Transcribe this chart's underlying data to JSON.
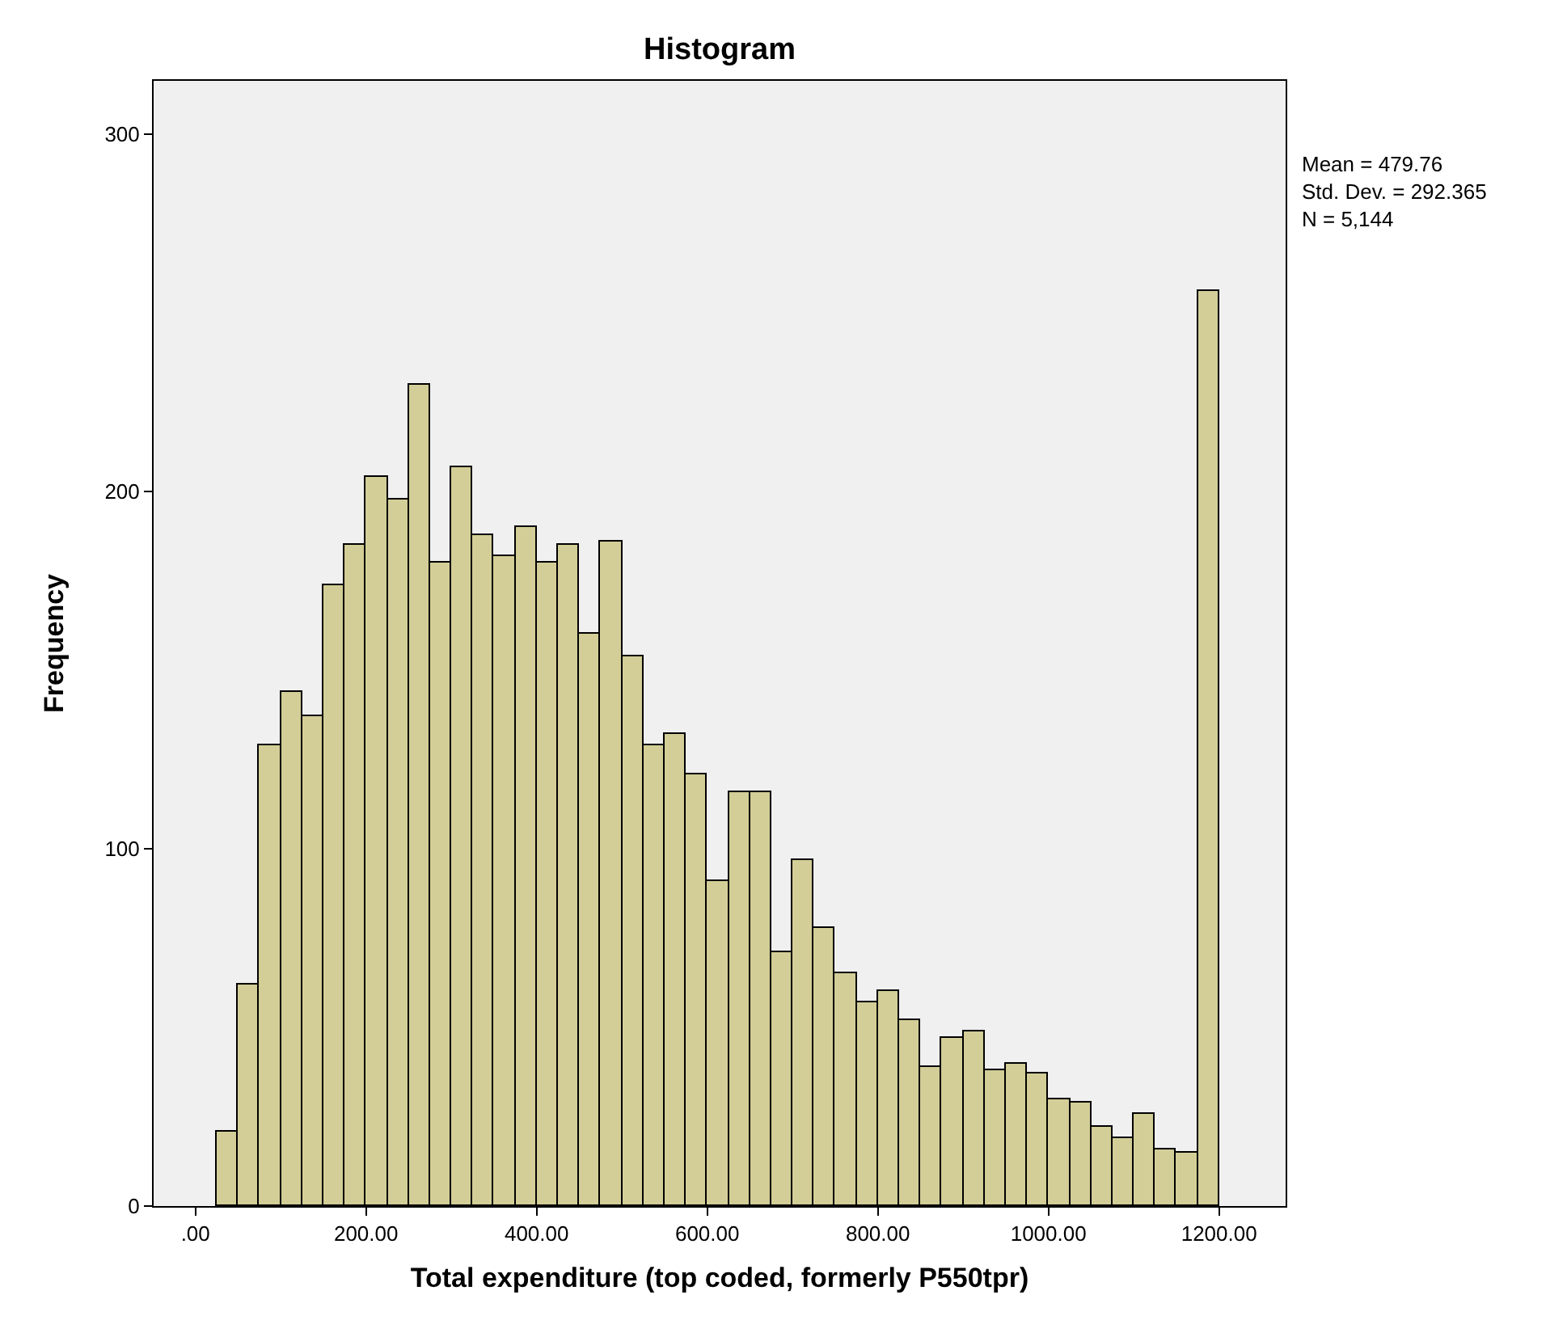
{
  "chart_data": {
    "type": "histogram",
    "title": "Histogram",
    "xlabel": "Total expenditure (top coded, formerly P550tpr)",
    "ylabel": "Frequency",
    "annotations": [
      "Mean = 479.76\nStd. Dev. = 292.365\nN = 5,144"
    ],
    "bins": [
      25,
      50,
      75,
      100,
      125,
      150,
      175,
      200,
      225,
      250,
      275,
      300,
      325,
      350,
      375,
      400,
      425,
      450,
      475,
      500,
      525,
      550,
      575,
      600,
      625,
      650,
      675,
      700,
      725,
      750,
      775,
      800,
      825,
      850,
      875,
      900,
      925,
      950,
      975,
      1000,
      1025,
      1050,
      1075,
      1100,
      1125,
      1150,
      1175,
      1200
    ],
    "values": [
      21,
      62,
      129,
      144,
      137,
      174,
      185,
      204,
      198,
      230,
      180,
      207,
      188,
      182,
      190,
      180,
      185,
      160,
      186,
      154,
      129,
      132,
      121,
      91,
      116,
      116,
      71,
      97,
      78,
      65,
      57,
      60,
      52,
      39,
      47,
      49,
      38,
      40,
      37,
      30,
      29,
      22,
      19,
      26,
      16,
      15,
      256
    ],
    "color": "#d3ce97",
    "xlim": [
      -49,
      1278
    ],
    "xticks": [
      {
        "value": 0,
        "label": ".00"
      },
      {
        "value": 200,
        "label": "200.00"
      },
      {
        "value": 400,
        "label": "400.00"
      },
      {
        "value": 600,
        "label": "600.00"
      },
      {
        "value": 800,
        "label": "800.00"
      },
      {
        "value": 1000,
        "label": "1000.00"
      },
      {
        "value": 1200,
        "label": "1200.00"
      }
    ],
    "ylim": [
      0,
      315
    ],
    "yticks": [
      0,
      100,
      200,
      300
    ],
    "grid": false
  }
}
